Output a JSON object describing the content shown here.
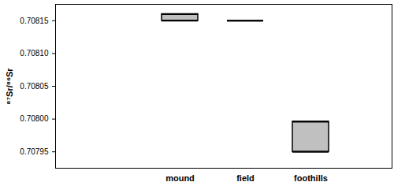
{
  "chart_data": {
    "type": "floating_bar",
    "y_label": "⁸⁷Sr/⁸⁶Sr",
    "categories": [
      "mound",
      "field",
      "foothills"
    ],
    "low": [
      0.70815,
      0.70815,
      0.70795
    ],
    "high": [
      0.70816,
      0.70815,
      0.707996
    ],
    "color": "#c0c0c0",
    "ylim": [
      0.707925,
      0.708175
    ],
    "yticks": [
      0.70795,
      {
        "value": 0.708,
        "label": "0.70800"
      },
      0.70805,
      {
        "value": 0.7081,
        "label": "0.70810"
      },
      0.70815
    ],
    "grid": false
  }
}
